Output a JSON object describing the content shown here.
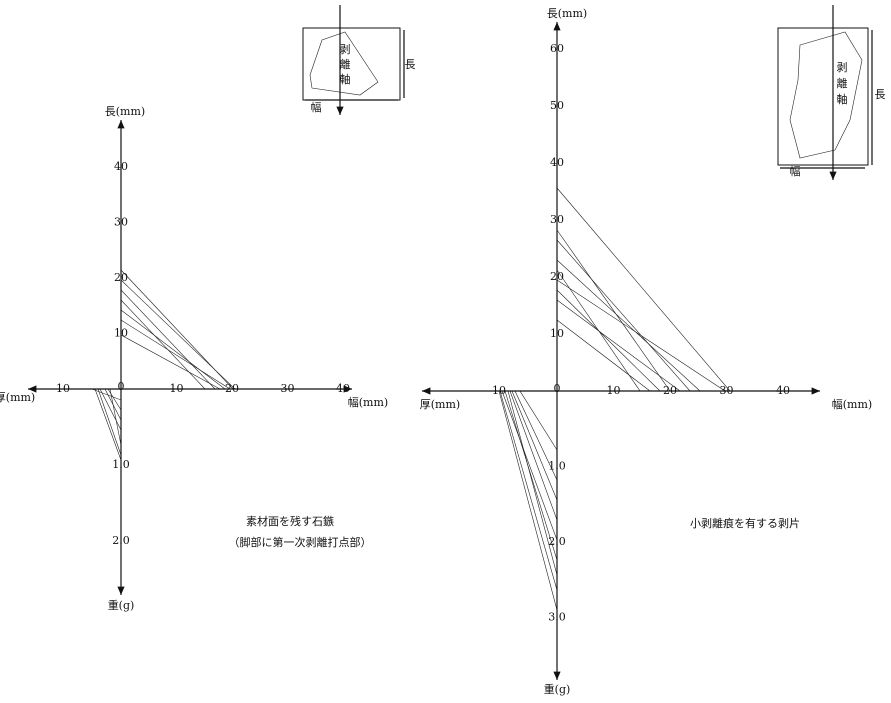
{
  "left": {
    "labels": {
      "up": "長(mm)",
      "right": "幅(mm)",
      "left": "厚(mm)",
      "down": "重(g)"
    },
    "origin": "0",
    "up_ticks": [
      "10",
      "20",
      "30",
      "40"
    ],
    "right_ticks": [
      "10",
      "20",
      "30",
      "40"
    ],
    "left_ticks": [
      "10"
    ],
    "down_ticks": [
      "1.0",
      "2.0"
    ],
    "caption": [
      "素材面を残す石鏃",
      "（脚部に第一次剥離打点部）"
    ],
    "inset": {
      "axis": [
        "剥",
        "離",
        "軸"
      ],
      "length": "長",
      "width": "幅"
    }
  },
  "right": {
    "labels": {
      "up": "長(mm)",
      "right": "幅(mm)",
      "left": "厚(mm)",
      "down": "重(g)"
    },
    "origin": "0",
    "up_ticks": [
      "10",
      "20",
      "30",
      "40",
      "50",
      "60"
    ],
    "right_ticks": [
      "10",
      "20",
      "30",
      "40"
    ],
    "left_ticks": [
      "10"
    ],
    "down_ticks": [
      "1.0",
      "2.0",
      "3.0"
    ],
    "caption": [
      "小剥離痕を有する剥片"
    ],
    "inset": {
      "axis": [
        "剥",
        "離",
        "軸"
      ],
      "length": "長",
      "width": "幅"
    }
  }
}
